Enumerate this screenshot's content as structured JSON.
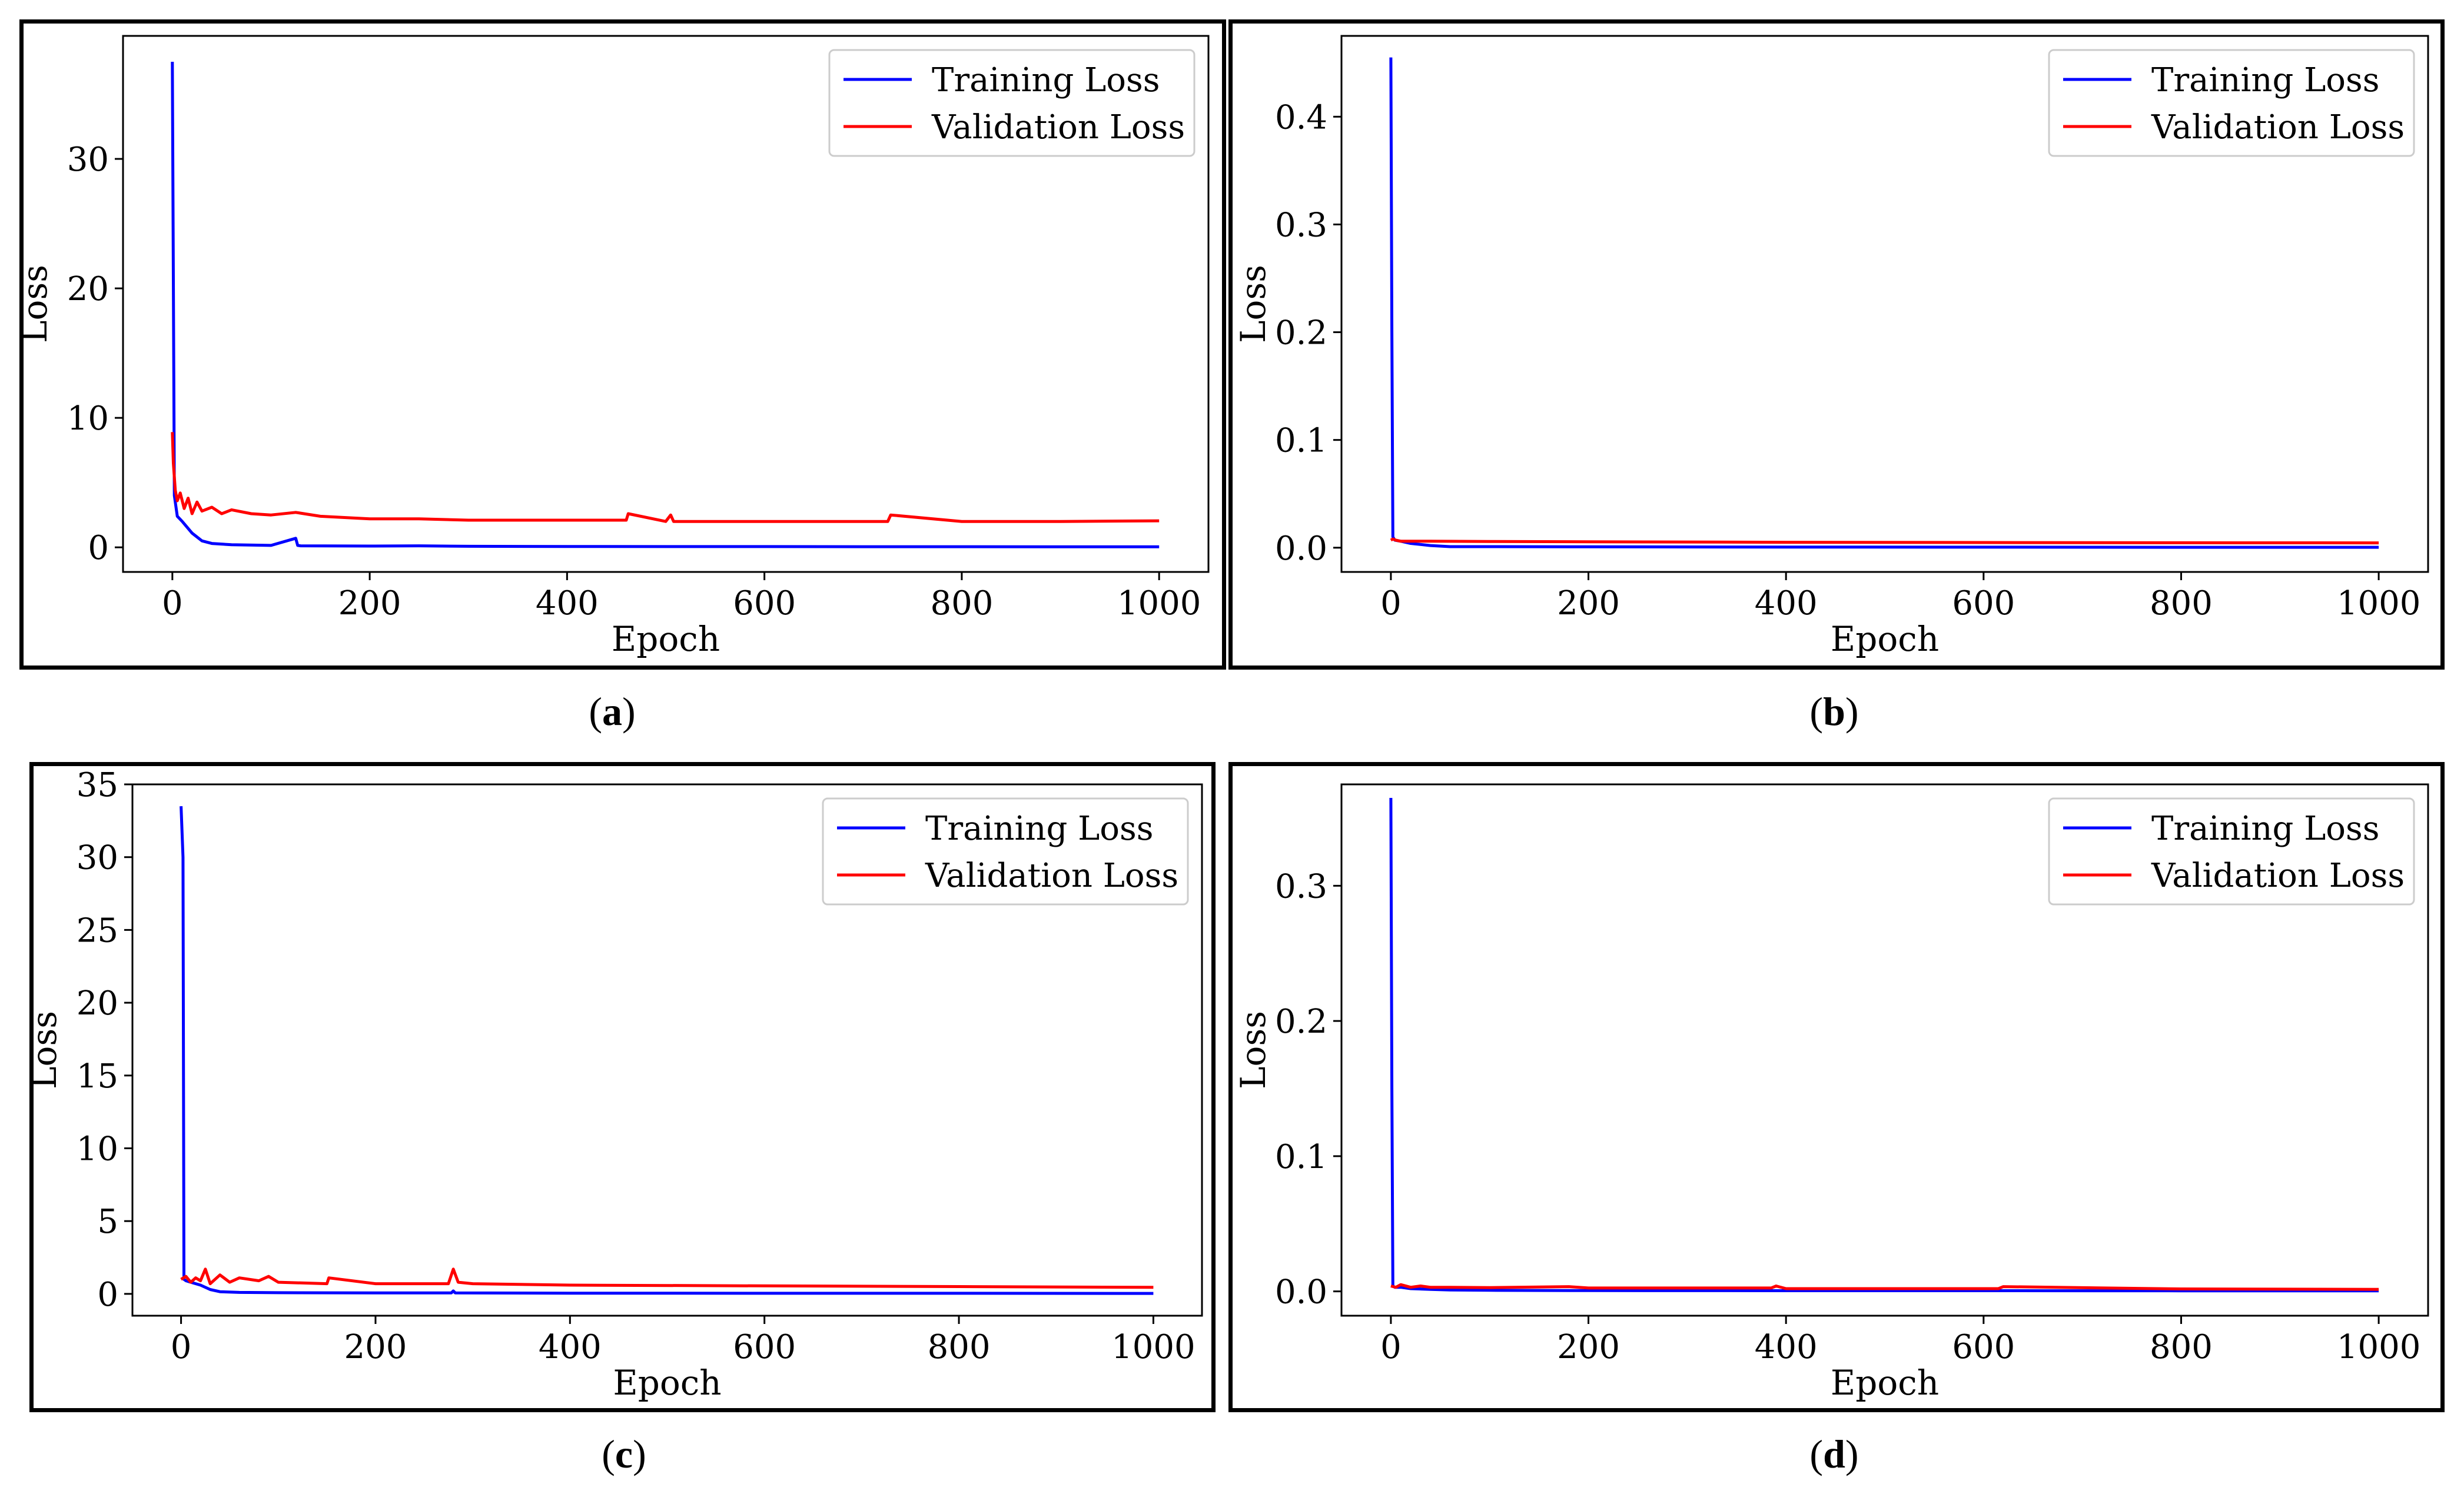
{
  "chart_data": [
    {
      "panel": "a",
      "type": "line",
      "xlabel": "Epoch",
      "ylabel": "Loss",
      "xlim": [
        -50,
        1050
      ],
      "ylim": [
        -1.9,
        39.5
      ],
      "xticks": [
        0,
        200,
        400,
        600,
        800,
        1000
      ],
      "yticks": [
        0,
        10,
        20,
        30
      ],
      "ytick_labels": [
        "0",
        "10",
        "20",
        "30"
      ],
      "legend_position": "top-right",
      "series": [
        {
          "name": "Training Loss",
          "color": "#0000ff",
          "x": [
            0,
            2,
            5,
            10,
            20,
            30,
            40,
            60,
            100,
            125,
            127,
            130,
            200,
            250,
            300,
            400,
            500,
            600,
            700,
            800,
            900,
            1000
          ],
          "y": [
            37.5,
            4.0,
            2.4,
            2.0,
            1.1,
            0.5,
            0.3,
            0.2,
            0.15,
            0.7,
            0.15,
            0.12,
            0.1,
            0.12,
            0.08,
            0.07,
            0.06,
            0.06,
            0.05,
            0.05,
            0.04,
            0.04
          ]
        },
        {
          "name": "Validation Loss",
          "color": "#ff0000",
          "x": [
            0,
            1,
            3,
            5,
            8,
            12,
            16,
            20,
            25,
            30,
            40,
            50,
            60,
            80,
            100,
            125,
            150,
            200,
            250,
            300,
            400,
            460,
            462,
            500,
            505,
            508,
            600,
            700,
            725,
            728,
            800,
            900,
            1000
          ],
          "y": [
            8.9,
            6.5,
            4.4,
            3.6,
            4.2,
            3.0,
            3.8,
            2.6,
            3.5,
            2.8,
            3.1,
            2.6,
            2.9,
            2.6,
            2.5,
            2.7,
            2.4,
            2.2,
            2.2,
            2.1,
            2.1,
            2.1,
            2.6,
            2.0,
            2.5,
            2.0,
            2.0,
            2.0,
            2.0,
            2.5,
            2.0,
            2.0,
            2.05
          ]
        }
      ]
    },
    {
      "panel": "b",
      "type": "line",
      "xlabel": "Epoch",
      "ylabel": "Loss",
      "xlim": [
        -50,
        1050
      ],
      "ylim": [
        -0.0225,
        0.475
      ],
      "xticks": [
        0,
        200,
        400,
        600,
        800,
        1000
      ],
      "yticks": [
        0,
        0.1,
        0.2,
        0.3,
        0.4
      ],
      "ytick_labels": [
        "0.0",
        "0.1",
        "0.2",
        "0.3",
        "0.4"
      ],
      "legend_position": "top-right",
      "series": [
        {
          "name": "Training Loss",
          "color": "#0000ff",
          "x": [
            0,
            1,
            2,
            4,
            10,
            20,
            40,
            60,
            100,
            200,
            400,
            600,
            800,
            1000
          ],
          "y": [
            0.455,
            0.2,
            0.01,
            0.007,
            0.006,
            0.004,
            0.002,
            0.001,
            0.001,
            0.0008,
            0.0006,
            0.0005,
            0.0004,
            0.0004
          ]
        },
        {
          "name": "Validation Loss",
          "color": "#ff0000",
          "x": [
            0,
            2,
            5,
            10,
            20,
            40,
            100,
            200,
            400,
            600,
            800,
            1000
          ],
          "y": [
            0.007,
            0.008,
            0.007,
            0.006,
            0.006,
            0.006,
            0.0058,
            0.0055,
            0.005,
            0.0048,
            0.0046,
            0.0045
          ]
        }
      ]
    },
    {
      "panel": "c",
      "type": "line",
      "xlabel": "Epoch",
      "ylabel": "Loss",
      "xlim": [
        -50,
        1050
      ],
      "ylim": [
        -1.5,
        35
      ],
      "xticks": [
        0,
        200,
        400,
        600,
        800,
        1000
      ],
      "yticks": [
        0,
        5,
        10,
        15,
        20,
        25,
        30,
        35
      ],
      "ytick_labels": [
        "0",
        "5",
        "10",
        "15",
        "20",
        "25",
        "30",
        "35"
      ],
      "legend_position": "top-right",
      "series": [
        {
          "name": "Training Loss",
          "color": "#0000ff",
          "x": [
            0,
            2,
            3,
            5,
            10,
            20,
            30,
            40,
            60,
            100,
            200,
            278,
            280,
            282,
            400,
            600,
            800,
            1000
          ],
          "y": [
            33.5,
            30.0,
            1.0,
            0.9,
            0.8,
            0.6,
            0.3,
            0.15,
            0.1,
            0.08,
            0.07,
            0.07,
            0.2,
            0.07,
            0.05,
            0.04,
            0.04,
            0.03
          ]
        },
        {
          "name": "Validation Loss",
          "color": "#ff0000",
          "x": [
            0,
            5,
            10,
            15,
            20,
            25,
            30,
            40,
            50,
            60,
            80,
            90,
            100,
            150,
            152,
            200,
            275,
            280,
            285,
            300,
            400,
            600,
            800,
            1000
          ],
          "y": [
            1.0,
            1.2,
            0.8,
            1.1,
            0.9,
            1.7,
            0.7,
            1.3,
            0.8,
            1.1,
            0.9,
            1.2,
            0.8,
            0.7,
            1.1,
            0.7,
            0.7,
            1.7,
            0.8,
            0.7,
            0.6,
            0.55,
            0.5,
            0.45
          ]
        }
      ]
    },
    {
      "panel": "d",
      "type": "line",
      "xlabel": "Epoch",
      "ylabel": "Loss",
      "xlim": [
        -50,
        1050
      ],
      "ylim": [
        -0.018,
        0.375
      ],
      "xticks": [
        0,
        200,
        400,
        600,
        800,
        1000
      ],
      "yticks": [
        0,
        0.1,
        0.2,
        0.3
      ],
      "ytick_labels": [
        "0.0",
        "0.1",
        "0.2",
        "0.3"
      ],
      "legend_position": "top-right",
      "series": [
        {
          "name": "Training Loss",
          "color": "#0000ff",
          "x": [
            0,
            1,
            2,
            4,
            10,
            20,
            40,
            60,
            100,
            200,
            400,
            600,
            800,
            1000
          ],
          "y": [
            0.365,
            0.15,
            0.004,
            0.003,
            0.003,
            0.002,
            0.0015,
            0.001,
            0.0008,
            0.0006,
            0.0005,
            0.0005,
            0.0004,
            0.0004
          ]
        },
        {
          "name": "Validation Loss",
          "color": "#ff0000",
          "x": [
            0,
            5,
            10,
            20,
            30,
            40,
            60,
            100,
            180,
            200,
            385,
            390,
            400,
            615,
            620,
            800,
            1000
          ],
          "y": [
            0.004,
            0.003,
            0.005,
            0.003,
            0.004,
            0.003,
            0.003,
            0.0028,
            0.0035,
            0.0025,
            0.0025,
            0.004,
            0.002,
            0.002,
            0.0035,
            0.0018,
            0.0015
          ]
        }
      ]
    }
  ],
  "captions": {
    "a": "a",
    "b": "b",
    "c": "c",
    "d": "d"
  },
  "legend": {
    "training": "Training Loss",
    "validation": "Validation Loss"
  }
}
